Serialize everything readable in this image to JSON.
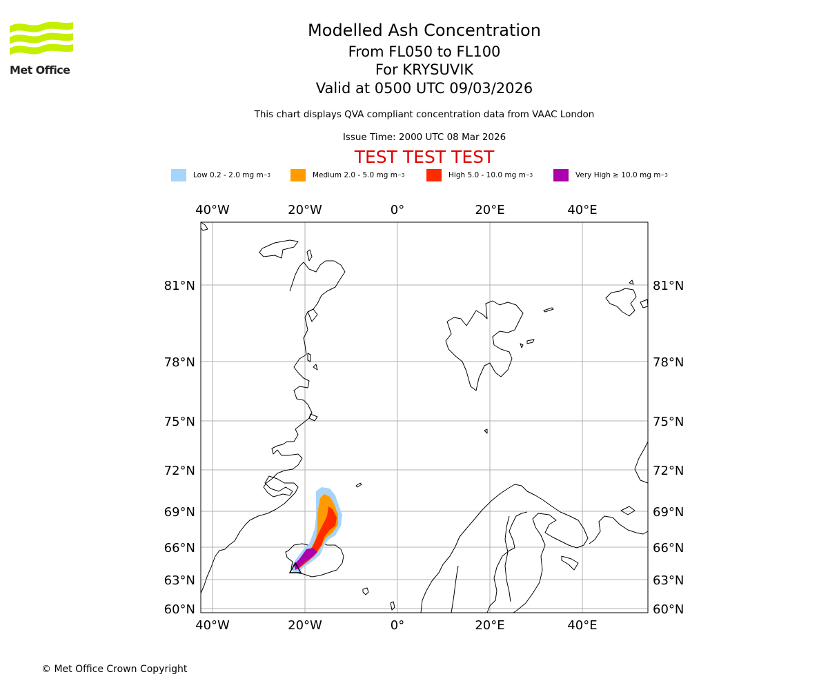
{
  "header": {
    "logo_text": "Met Office",
    "title": "Modelled Ash Concentration",
    "level_range": "From FL050 to FL100",
    "volcano": "For KRYSUVIK",
    "valid_time": "Valid at 0500 UTC 09/03/2026",
    "description": "This chart displays QVA compliant concentration data from VAAC London",
    "issue_time": "Issue Time: 2000 UTC 08 Mar 2026",
    "test_banner": "TEST TEST TEST"
  },
  "legend": [
    {
      "label": "Low 0.2 - 2.0 mg m",
      "unit_exp": "−3",
      "color": "#a6d4fa"
    },
    {
      "label": "Medium 2.0 - 5.0 mg m",
      "unit_exp": "−3",
      "color": "#ff9a00"
    },
    {
      "label": "High 5.0 - 10.0 mg m",
      "unit_exp": "−3",
      "color": "#ff2a00"
    },
    {
      "label": "Very High  ≥  10.0 mg m",
      "unit_exp": "−3",
      "color": "#ad00ad"
    }
  ],
  "map": {
    "lon_labels": [
      "40°W",
      "20°W",
      "0°",
      "20°E",
      "40°E"
    ],
    "lat_labels": [
      "81°N",
      "78°N",
      "75°N",
      "72°N",
      "69°N",
      "66°N",
      "63°N",
      "60°N"
    ],
    "grid_color": "#b0b0b0",
    "coast_color": "#000000"
  },
  "footer": {
    "copyright": "© Met Office Crown Copyright"
  }
}
